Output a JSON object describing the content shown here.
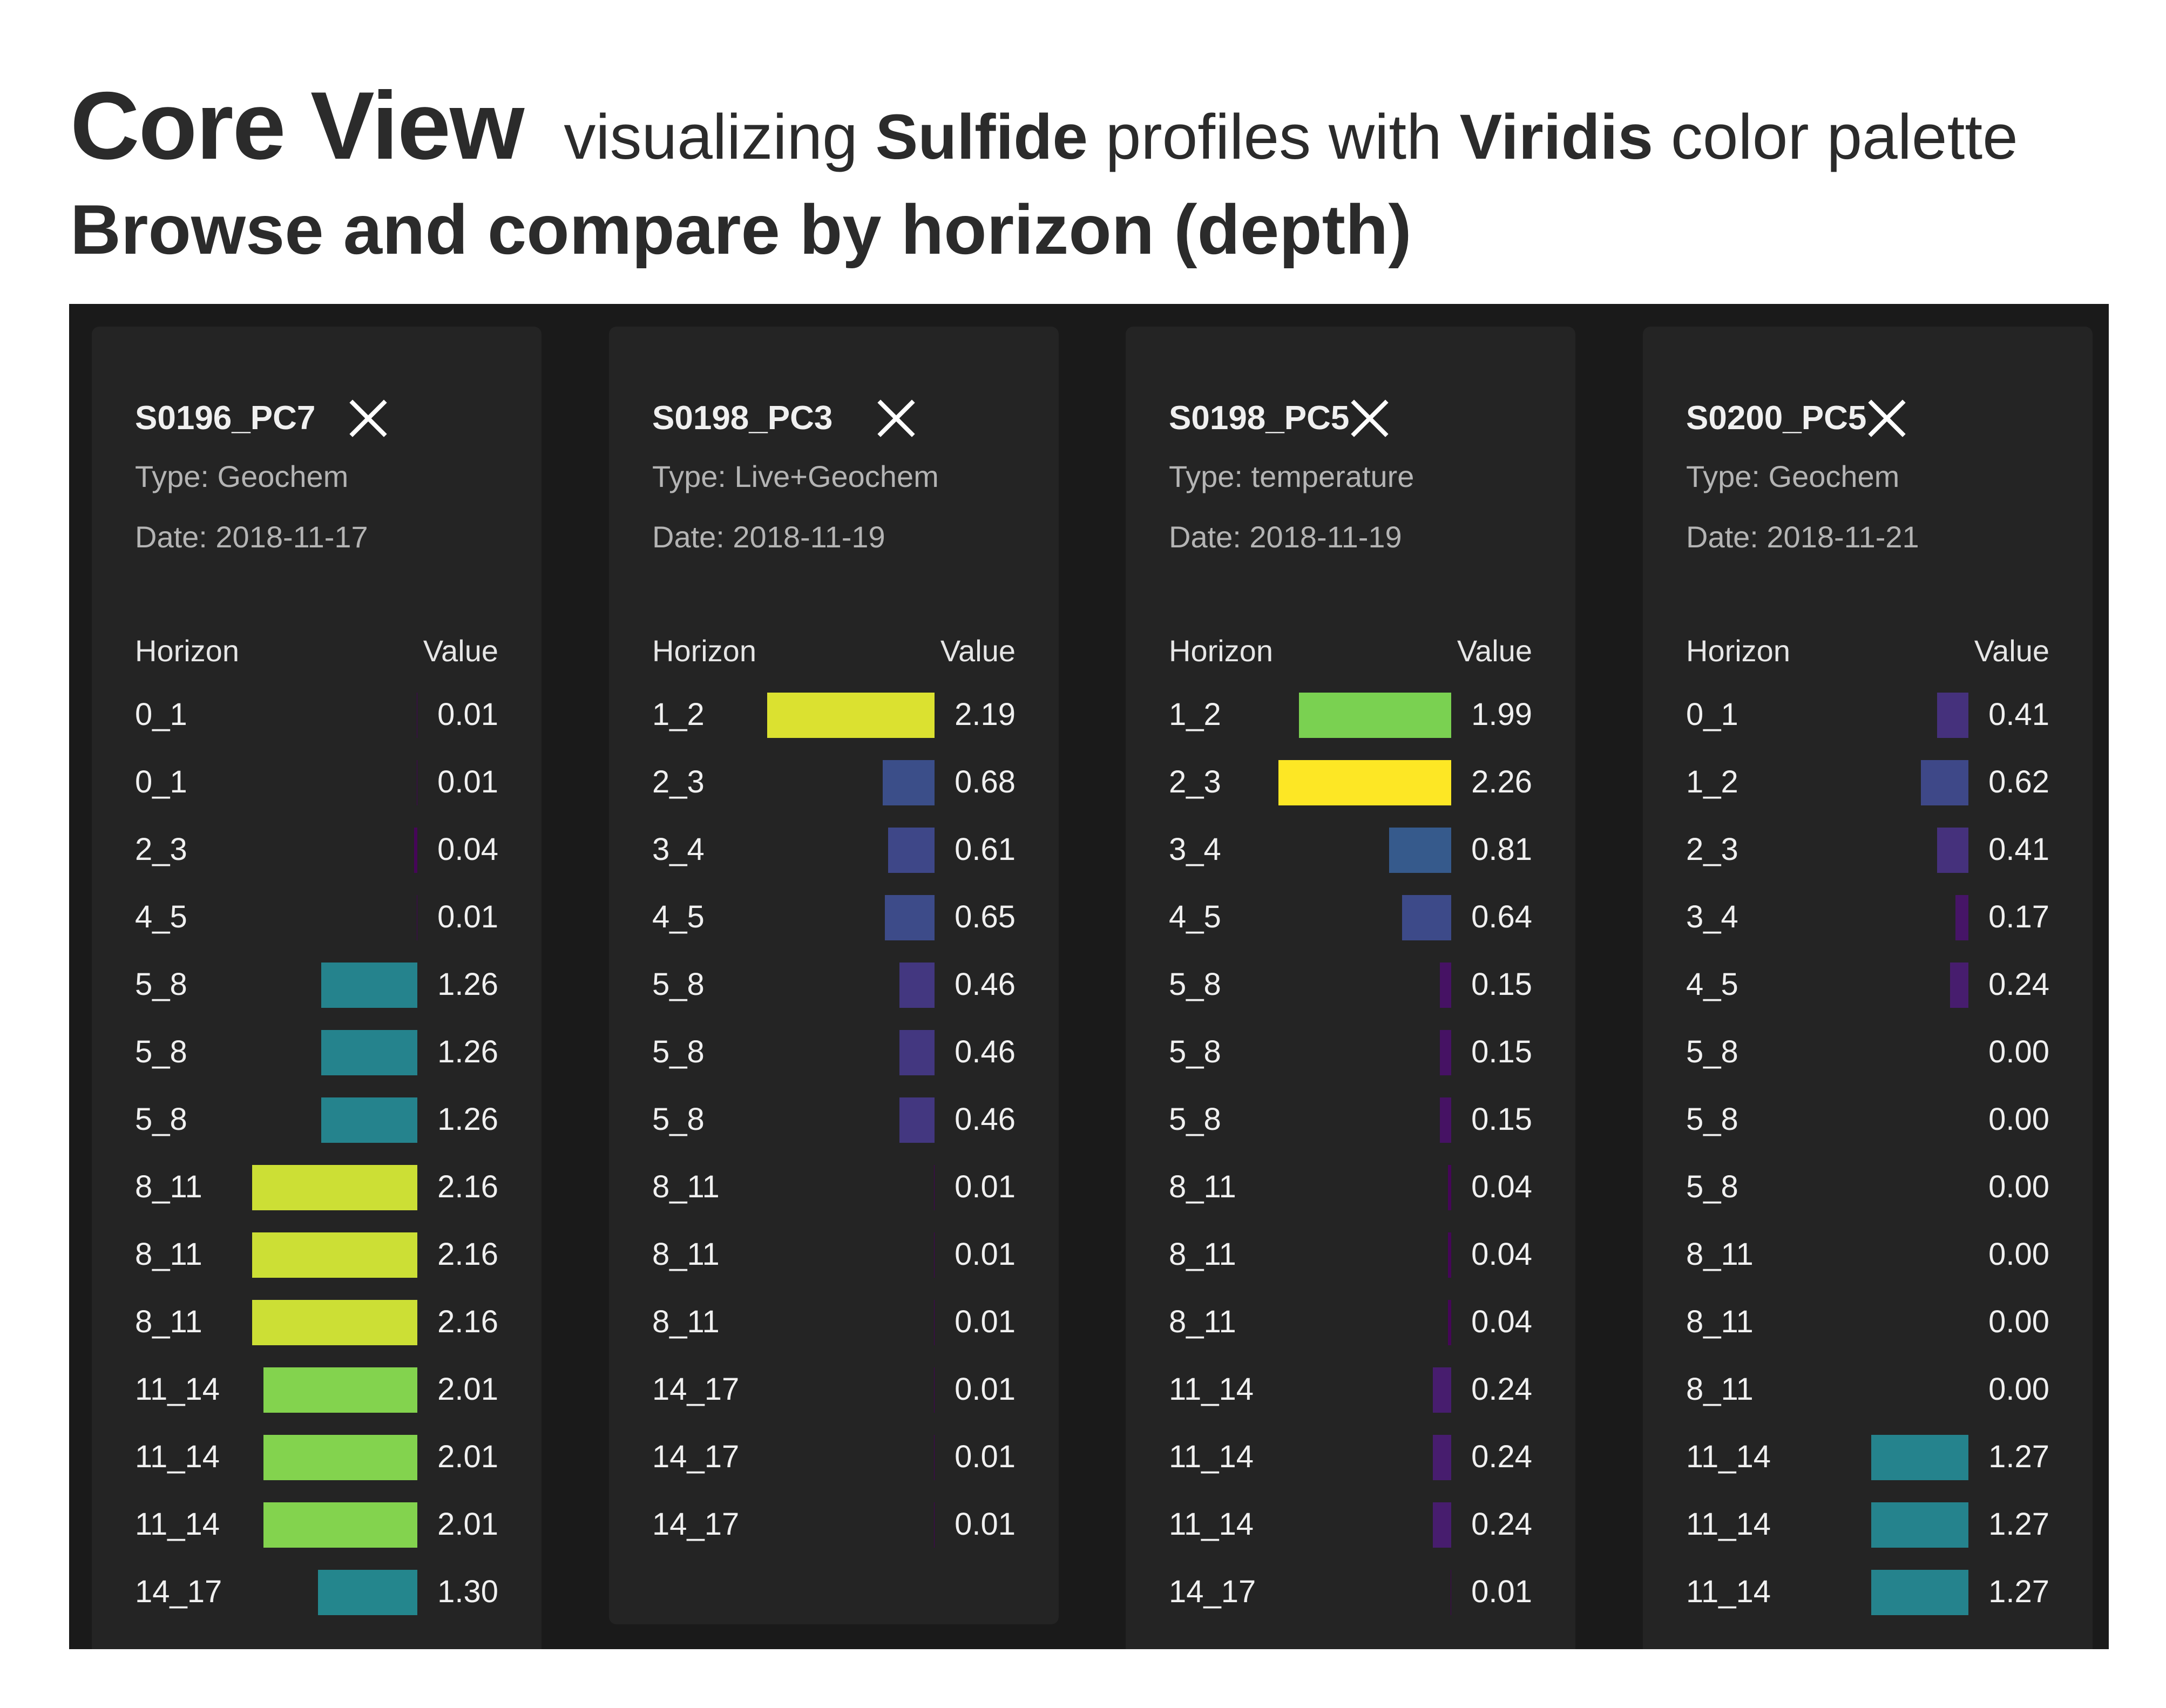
{
  "header": {
    "title": "Core View",
    "sub_prefix": "visualizing",
    "sub_bold1": "Sulfide",
    "sub_middle": "profiles with",
    "sub_bold2": "Viridis",
    "sub_suffix": "color palette",
    "subtitle": "Browse and compare by horizon (depth)"
  },
  "colors": {
    "panel_bg": "#1a1a1a",
    "card_bg": "#242424",
    "viridis_min": "#440154",
    "viridis_max": "#fde725"
  },
  "icons": {
    "close": "close-x-icon"
  },
  "cards": [
    {
      "id": "S0196_PC7",
      "type": "Type: Geochem",
      "date": "Date: 2018-11-17",
      "col_horizon": "Horizon",
      "col_value": "Value",
      "rows": [
        {
          "horizon": "0_1",
          "value": "0.01"
        },
        {
          "horizon": "0_1",
          "value": "0.01"
        },
        {
          "horizon": "2_3",
          "value": "0.04"
        },
        {
          "horizon": "4_5",
          "value": "0.01"
        },
        {
          "horizon": "5_8",
          "value": "1.26"
        },
        {
          "horizon": "5_8",
          "value": "1.26"
        },
        {
          "horizon": "5_8",
          "value": "1.26"
        },
        {
          "horizon": "8_11",
          "value": "2.16"
        },
        {
          "horizon": "8_11",
          "value": "2.16"
        },
        {
          "horizon": "8_11",
          "value": "2.16"
        },
        {
          "horizon": "11_14",
          "value": "2.01"
        },
        {
          "horizon": "11_14",
          "value": "2.01"
        },
        {
          "horizon": "11_14",
          "value": "2.01"
        },
        {
          "horizon": "14_17",
          "value": "1.30"
        }
      ]
    },
    {
      "id": "S0198_PC3",
      "type": "Type: Live+Geochem",
      "date": "Date: 2018-11-19",
      "col_horizon": "Horizon",
      "col_value": "Value",
      "rows": [
        {
          "horizon": "1_2",
          "value": "2.19"
        },
        {
          "horizon": "2_3",
          "value": "0.68"
        },
        {
          "horizon": "3_4",
          "value": "0.61"
        },
        {
          "horizon": "4_5",
          "value": "0.65"
        },
        {
          "horizon": "5_8",
          "value": "0.46"
        },
        {
          "horizon": "5_8",
          "value": "0.46"
        },
        {
          "horizon": "5_8",
          "value": "0.46"
        },
        {
          "horizon": "8_11",
          "value": "0.01"
        },
        {
          "horizon": "8_11",
          "value": "0.01"
        },
        {
          "horizon": "8_11",
          "value": "0.01"
        },
        {
          "horizon": "14_17",
          "value": "0.01"
        },
        {
          "horizon": "14_17",
          "value": "0.01"
        },
        {
          "horizon": "14_17",
          "value": "0.01"
        }
      ]
    },
    {
      "id": "S0198_PC5",
      "type": "Type: temperature",
      "date": "Date: 2018-11-19",
      "col_horizon": "Horizon",
      "col_value": "Value",
      "rows": [
        {
          "horizon": "1_2",
          "value": "1.99"
        },
        {
          "horizon": "2_3",
          "value": "2.26"
        },
        {
          "horizon": "3_4",
          "value": "0.81"
        },
        {
          "horizon": "4_5",
          "value": "0.64"
        },
        {
          "horizon": "5_8",
          "value": "0.15"
        },
        {
          "horizon": "5_8",
          "value": "0.15"
        },
        {
          "horizon": "5_8",
          "value": "0.15"
        },
        {
          "horizon": "8_11",
          "value": "0.04"
        },
        {
          "horizon": "8_11",
          "value": "0.04"
        },
        {
          "horizon": "8_11",
          "value": "0.04"
        },
        {
          "horizon": "11_14",
          "value": "0.24"
        },
        {
          "horizon": "11_14",
          "value": "0.24"
        },
        {
          "horizon": "11_14",
          "value": "0.24"
        },
        {
          "horizon": "14_17",
          "value": "0.01"
        }
      ]
    },
    {
      "id": "S0200_PC5",
      "type": "Type: Geochem",
      "date": "Date: 2018-11-21",
      "col_horizon": "Horizon",
      "col_value": "Value",
      "rows": [
        {
          "horizon": "0_1",
          "value": "0.41"
        },
        {
          "horizon": "1_2",
          "value": "0.62"
        },
        {
          "horizon": "2_3",
          "value": "0.41"
        },
        {
          "horizon": "3_4",
          "value": "0.17"
        },
        {
          "horizon": "4_5",
          "value": "0.24"
        },
        {
          "horizon": "5_8",
          "value": "0.00"
        },
        {
          "horizon": "5_8",
          "value": "0.00"
        },
        {
          "horizon": "5_8",
          "value": "0.00"
        },
        {
          "horizon": "8_11",
          "value": "0.00"
        },
        {
          "horizon": "8_11",
          "value": "0.00"
        },
        {
          "horizon": "8_11",
          "value": "0.00"
        },
        {
          "horizon": "11_14",
          "value": "1.27"
        },
        {
          "horizon": "11_14",
          "value": "1.27"
        },
        {
          "horizon": "11_14",
          "value": "1.27"
        }
      ]
    }
  ]
}
